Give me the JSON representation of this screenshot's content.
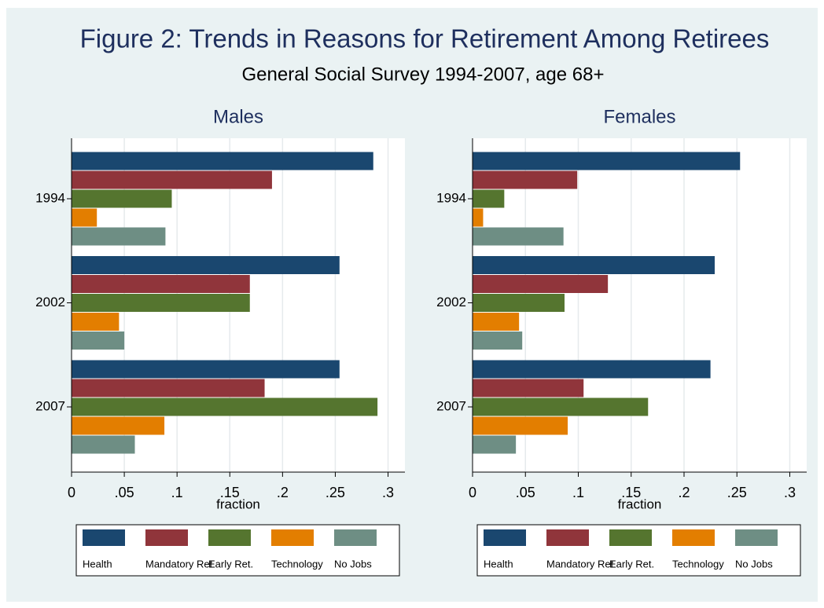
{
  "figure": {
    "title": "Figure 2: Trends in Reasons for Retirement Among Retirees",
    "subtitle": "General Social Survey 1994-2007, age 68+"
  },
  "chart_data": [
    {
      "type": "bar",
      "orientation": "horizontal",
      "title": "Males",
      "x_label": "fraction",
      "categories": [
        "1994",
        "2002",
        "2007"
      ],
      "series": [
        {
          "name": "Health",
          "color": "#1a476f",
          "values": [
            0.286,
            0.254,
            0.254
          ]
        },
        {
          "name": "Mandatory Ret",
          "color": "#90353b",
          "values": [
            0.19,
            0.169,
            0.183
          ]
        },
        {
          "name": "Early Ret.",
          "color": "#55752f",
          "values": [
            0.095,
            0.169,
            0.29
          ]
        },
        {
          "name": "Technology",
          "color": "#e37e00",
          "values": [
            0.024,
            0.045,
            0.088
          ]
        },
        {
          "name": "No Jobs",
          "color": "#6e8e84",
          "values": [
            0.089,
            0.05,
            0.06
          ]
        }
      ],
      "xlim": [
        0,
        0.316
      ],
      "xticks": [
        0,
        {
          "value": 0.05,
          "label": ".05"
        },
        {
          "value": 0.1,
          "label": ".1"
        },
        {
          "value": 0.15,
          "label": ".15"
        },
        {
          "value": 0.2,
          "label": ".2"
        },
        {
          "value": 0.25,
          "label": ".25"
        },
        {
          "value": 0.3,
          "label": ".3"
        }
      ],
      "grid": true,
      "legend": "bottom"
    },
    {
      "type": "bar",
      "orientation": "horizontal",
      "title": "Females",
      "x_label": "fraction",
      "categories": [
        "1994",
        "2002",
        "2007"
      ],
      "series": [
        {
          "name": "Health",
          "color": "#1a476f",
          "values": [
            0.253,
            0.229,
            0.225
          ]
        },
        {
          "name": "Mandatory Ret",
          "color": "#90353b",
          "values": [
            0.099,
            0.128,
            0.105
          ]
        },
        {
          "name": "Early Ret.",
          "color": "#55752f",
          "values": [
            0.03,
            0.087,
            0.166
          ]
        },
        {
          "name": "Technology",
          "color": "#e37e00",
          "values": [
            0.01,
            0.044,
            0.09
          ]
        },
        {
          "name": "No Jobs",
          "color": "#6e8e84",
          "values": [
            0.086,
            0.047,
            0.041
          ]
        }
      ],
      "xlim": [
        0,
        0.316
      ],
      "xticks": [
        0,
        {
          "value": 0.05,
          "label": ".05"
        },
        {
          "value": 0.1,
          "label": ".1"
        },
        {
          "value": 0.15,
          "label": ".15"
        },
        {
          "value": 0.2,
          "label": ".2"
        },
        {
          "value": 0.25,
          "label": ".25"
        },
        {
          "value": 0.3,
          "label": ".3"
        }
      ],
      "grid": true,
      "legend": "bottom"
    }
  ]
}
